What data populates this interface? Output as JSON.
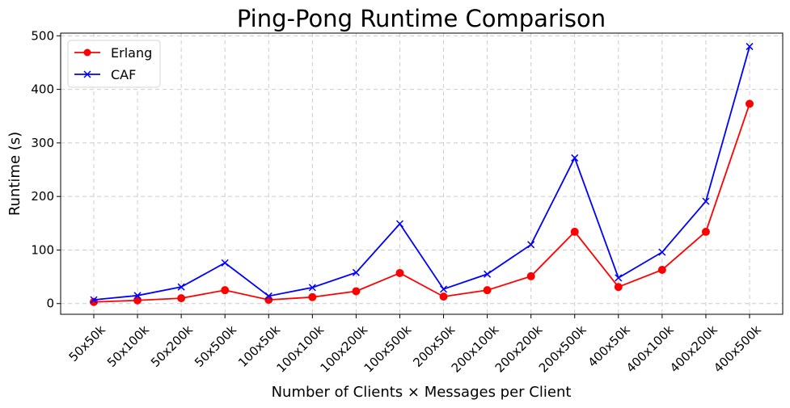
{
  "chart_data": {
    "type": "line",
    "title": "Ping-Pong Runtime Comparison",
    "xlabel": "Number of Clients × Messages per Client",
    "ylabel": "Runtime (s)",
    "categories": [
      "50x50k",
      "50x100k",
      "50x200k",
      "50x500k",
      "100x50k",
      "100x100k",
      "100x200k",
      "100x500k",
      "200x50k",
      "200x100k",
      "200x200k",
      "200x500k",
      "400x50k",
      "400x100k",
      "400x200k",
      "400x500k"
    ],
    "ylim": [
      -20,
      505
    ],
    "yticks": [
      0,
      100,
      200,
      300,
      400,
      500
    ],
    "grid": true,
    "legend_position": "top-left",
    "series": [
      {
        "name": "Erlang",
        "color": "#ff0000",
        "marker": "circle",
        "values": [
          3,
          6,
          10,
          25,
          7,
          12,
          23,
          57,
          13,
          25,
          51,
          134,
          31,
          63,
          134,
          373
        ]
      },
      {
        "name": "CAF",
        "color": "#0000ff",
        "marker": "x",
        "values": [
          7,
          15,
          31,
          76,
          14,
          30,
          58,
          149,
          27,
          55,
          110,
          272,
          48,
          96,
          191,
          480
        ]
      }
    ]
  }
}
